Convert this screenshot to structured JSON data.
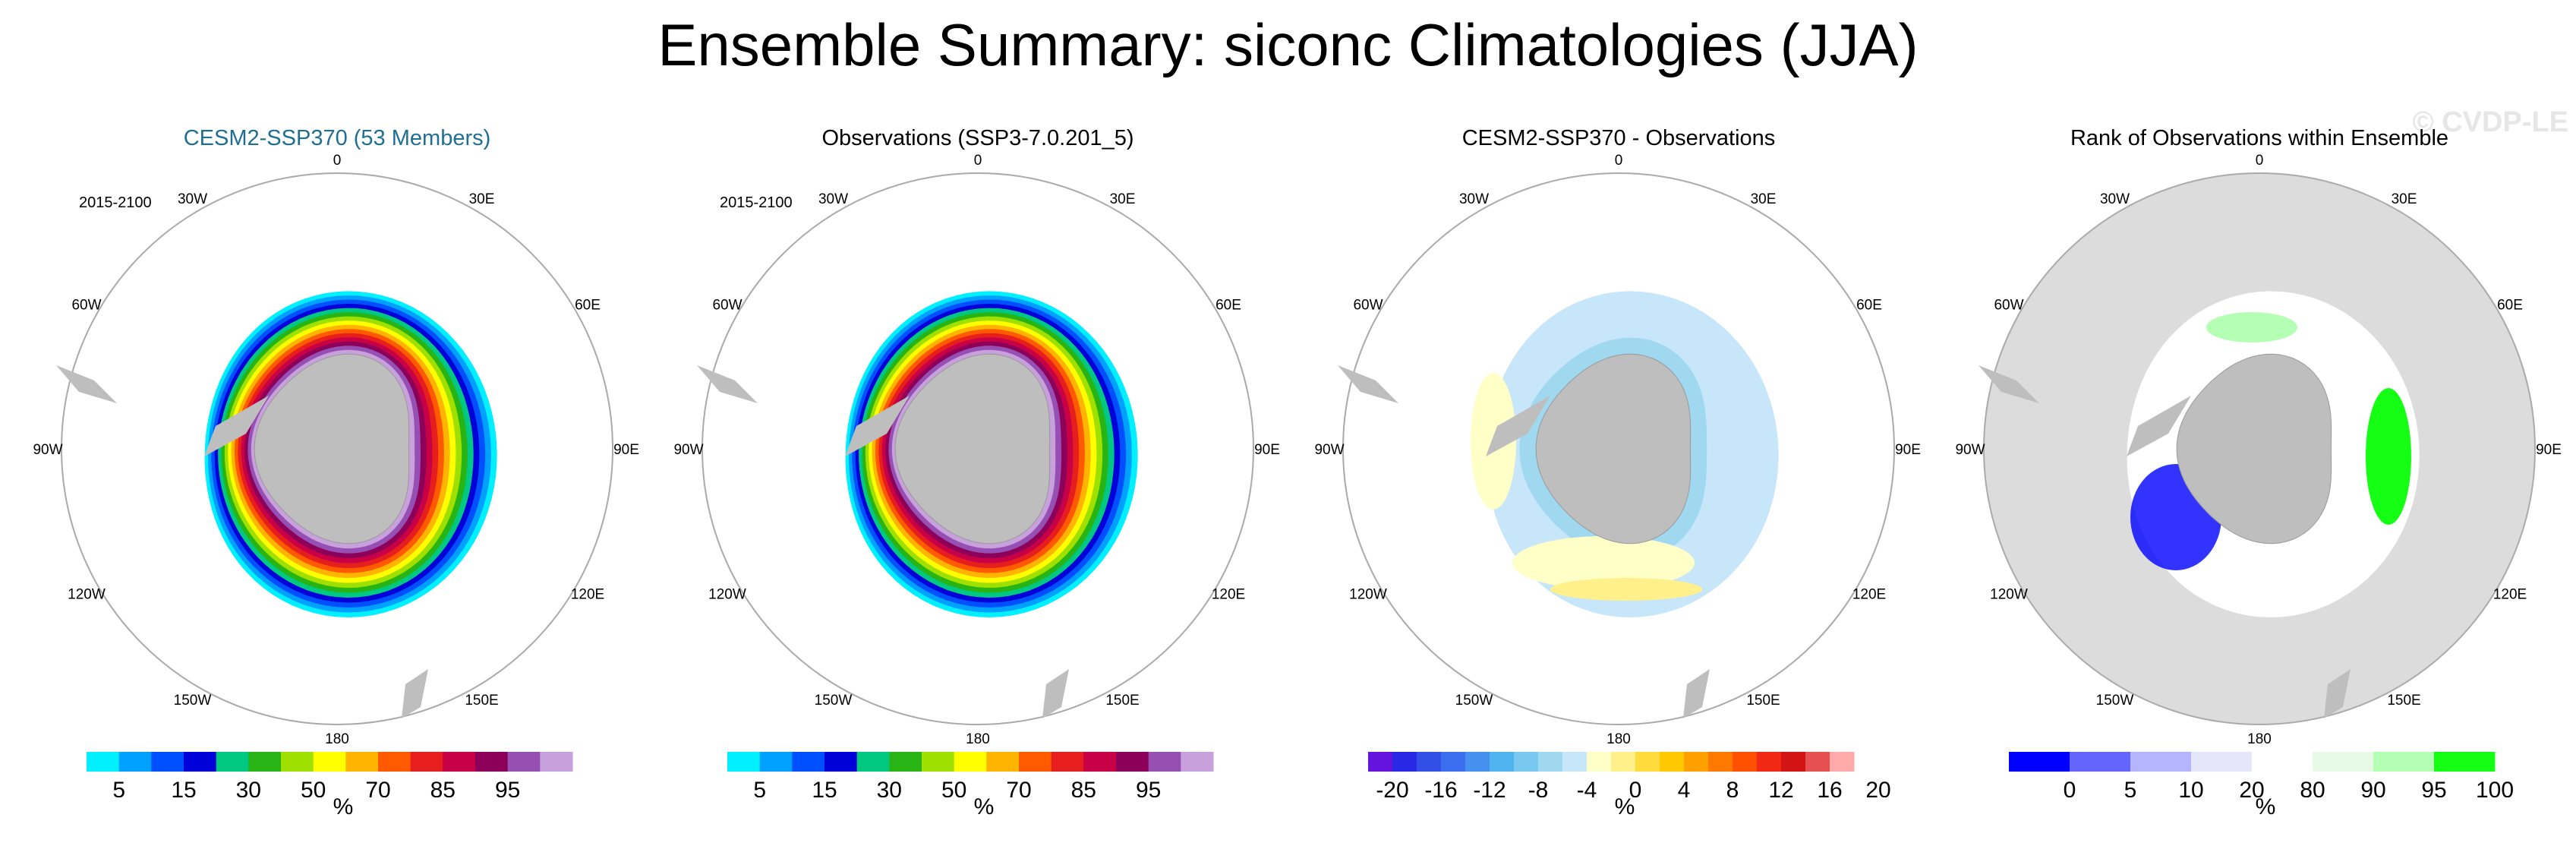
{
  "title": "Ensemble Summary: siconc Climatologies (JJA)",
  "watermark": "© CVDP-LE",
  "longitude_labels": [
    "0",
    "30E",
    "60E",
    "90E",
    "120E",
    "150E",
    "180",
    "150W",
    "120W",
    "90W",
    "60W",
    "30W"
  ],
  "panels": [
    {
      "title": "CESM2-SSP370 (53 Members)",
      "title_color": "#1f6e94",
      "period": "2015-2100",
      "units": "%",
      "colorbar": {
        "colors": [
          "#00f0ff",
          "#00a0ff",
          "#0050ff",
          "#0000d8",
          "#00c882",
          "#28b414",
          "#a0e000",
          "#ffff00",
          "#ffb400",
          "#ff5a00",
          "#e61e1e",
          "#c80046",
          "#8c005a",
          "#9650b4",
          "#c8a0dc"
        ],
        "tick_labels": [
          "5",
          "15",
          "30",
          "50",
          "70",
          "85",
          "95"
        ]
      }
    },
    {
      "title": "Observations (SSP3-7.0.201_5)",
      "title_color": "#000000",
      "period": "2015-2100",
      "units": "%",
      "colorbar": {
        "colors": [
          "#00f0ff",
          "#00a0ff",
          "#0050ff",
          "#0000d8",
          "#00c882",
          "#28b414",
          "#a0e000",
          "#ffff00",
          "#ffb400",
          "#ff5a00",
          "#e61e1e",
          "#c80046",
          "#8c005a",
          "#9650b4",
          "#c8a0dc"
        ],
        "tick_labels": [
          "5",
          "15",
          "30",
          "50",
          "70",
          "85",
          "95"
        ]
      }
    },
    {
      "title": "CESM2-SSP370 - Observations",
      "title_color": "#000000",
      "period": "",
      "units": "%",
      "colorbar": {
        "colors": [
          "#6414dc",
          "#2828e6",
          "#3250e6",
          "#3c6ef0",
          "#4690f0",
          "#50b4f0",
          "#78c8f0",
          "#a0d8f0",
          "#c8e6fa",
          "#ffffc8",
          "#fff08c",
          "#ffdc3c",
          "#ffc800",
          "#ffa000",
          "#ff7800",
          "#ff5000",
          "#f02814",
          "#d21414",
          "#e65050",
          "#ffaaaa"
        ],
        "tick_labels": [
          "-20",
          "-16",
          "-12",
          "-8",
          "-4",
          "0",
          "4",
          "8",
          "12",
          "16",
          "20"
        ]
      }
    },
    {
      "title": "Rank of Observations within Ensemble",
      "title_color": "#000000",
      "period": "",
      "units": "%",
      "colorbar": {
        "colors": [
          "#0000ff",
          "#6464ff",
          "#b4b4ff",
          "#e6e6fa",
          "#ffffff",
          "#e6fae6",
          "#b4ffb4",
          "#14ff14"
        ],
        "tick_labels": [
          "0",
          "5",
          "10",
          "20",
          "80",
          "90",
          "95",
          "100"
        ]
      }
    }
  ],
  "chart_data": [
    {
      "type": "heatmap",
      "title": "CESM2-SSP370 (53 Members)",
      "projection": "south polar stereographic",
      "variable": "siconc",
      "season": "JJA",
      "period": "2015-2100",
      "units": "%",
      "levels": [
        5,
        10,
        15,
        20,
        30,
        40,
        50,
        60,
        70,
        80,
        85,
        90,
        95,
        99
      ],
      "pattern": "sea ice ring around Antarctica: high concentration (>95%) near coast in Weddell and Ross seas, decreasing outward to <15% at ice edge"
    },
    {
      "type": "heatmap",
      "title": "Observations (SSP3-7.0.201_5)",
      "projection": "south polar stereographic",
      "variable": "siconc",
      "season": "JJA",
      "period": "2015-2100",
      "units": "%",
      "levels": [
        5,
        10,
        15,
        20,
        30,
        40,
        50,
        60,
        70,
        80,
        85,
        90,
        95,
        99
      ],
      "pattern": "similar to ensemble mean: high concentration near coast decreasing outward"
    },
    {
      "type": "heatmap",
      "title": "CESM2-SSP370 - Observations",
      "projection": "south polar stereographic",
      "units": "%",
      "levels": [
        -20,
        -16,
        -12,
        -8,
        -4,
        0,
        4,
        8,
        12,
        16,
        20
      ],
      "pattern": "mostly light blue (-4 to 0) across ice pack with light yellow (0 to 4) patches in Ross Sea and Antarctic Peninsula, small orange near 180"
    },
    {
      "type": "heatmap",
      "title": "Rank of Observations within Ensemble",
      "projection": "south polar stereographic",
      "units": "%",
      "levels": [
        0,
        5,
        10,
        20,
        80,
        90,
        95,
        100
      ],
      "pattern": "mostly white (20-80%) with green (high rank) in Indian Ocean sector and blue (low rank) in Ross Sea and Amundsen sector"
    }
  ]
}
